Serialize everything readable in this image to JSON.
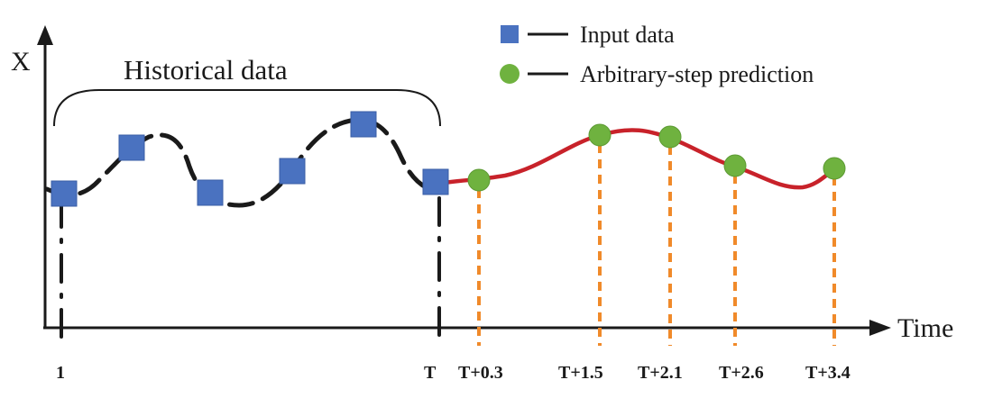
{
  "axes": {
    "y_label": "X",
    "x_label": "Time"
  },
  "legend": {
    "input": "Input data",
    "prediction": "Arbitrary-step prediction"
  },
  "brace_label": "Historical data",
  "ticks": {
    "start": "1",
    "T": "T",
    "p1": "T+0.3",
    "p2": "T+1.5",
    "p3": "T+2.1",
    "p4": "T+2.6",
    "p5": "T+3.4"
  },
  "colors": {
    "input_marker": "#4a72c0",
    "prediction_marker": "#6fb23f",
    "prediction_curve": "#c8222a",
    "guide_line": "#f08a2a",
    "axis": "#1a1a1a"
  }
}
